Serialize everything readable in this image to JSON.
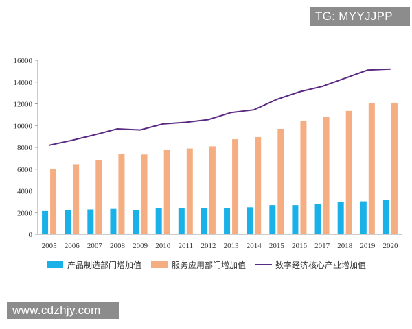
{
  "watermarks": {
    "top": "TG: MYYJJPP",
    "bottom": "www.cdzhjy.com"
  },
  "colors": {
    "manufacturing": "#1ab0e8",
    "service": "#f5ad82",
    "core": "#5a2a82",
    "axis": "#9a9a9a",
    "text": "#333333"
  },
  "chart_data": {
    "type": "bar",
    "title": "",
    "xlabel": "",
    "ylabel": "",
    "ylim": [
      0,
      16000
    ],
    "yticks": [
      0,
      2000,
      4000,
      6000,
      8000,
      10000,
      12000,
      14000,
      16000
    ],
    "categories": [
      "2005",
      "2006",
      "2007",
      "2008",
      "2009",
      "2010",
      "2011",
      "2012",
      "2013",
      "2014",
      "2015",
      "2016",
      "2017",
      "2018",
      "2019",
      "2020"
    ],
    "series": [
      {
        "name": "产品制造部门增加值",
        "type": "bar",
        "values": [
          2150,
          2250,
          2300,
          2350,
          2250,
          2400,
          2400,
          2450,
          2450,
          2500,
          2700,
          2700,
          2800,
          3000,
          3050,
          3150
        ]
      },
      {
        "name": "服务应用部门增加值",
        "type": "bar",
        "values": [
          6050,
          6400,
          6850,
          7400,
          7350,
          7750,
          7900,
          8100,
          8750,
          8950,
          9700,
          10400,
          10800,
          11350,
          12050,
          12100
        ]
      },
      {
        "name": "数字经济核心产业增加值",
        "type": "line",
        "values": [
          8200,
          8650,
          9150,
          9700,
          9600,
          10150,
          10300,
          10550,
          11200,
          11450,
          12400,
          13100,
          13600,
          14350,
          15100,
          15200
        ]
      }
    ],
    "legend_position": "bottom",
    "grid": false
  }
}
